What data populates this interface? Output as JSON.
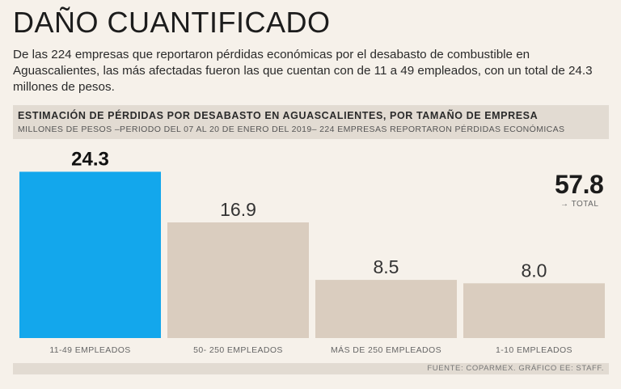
{
  "headline": "DAÑO CUANTIFICADO",
  "lede": "De las 224 empresas que reportaron pérdidas económicas por el desabasto de combustible en Aguascalientes, las más afectadas fueron las que cuentan con de 11 a 49 empleados, con un total de 24.3 millones de pesos.",
  "chart_data": {
    "type": "bar",
    "title": "ESTIMACIÓN DE PÉRDIDAS POR DESABASTO EN AGUASCALIENTES, POR TAMAÑO DE EMPRESA",
    "subtitle": "MILLONES DE PESOS –PERIODO DEL 07 AL 20 DE ENERO DEL 2019– 224 EMPRESAS REPORTARON PÉRDIDAS ECONÓMICAS",
    "categories": [
      "11-49 EMPLEADOS",
      "50- 250 EMPLEADOS",
      "MÁS DE 250 EMPLEADOS",
      "1-10 EMPLEADOS"
    ],
    "values": [
      24.3,
      16.9,
      8.5,
      8.0
    ],
    "value_labels": [
      "24.3",
      "16.9",
      "8.5",
      "8.0"
    ],
    "highlight_index": 0,
    "ylim": [
      0,
      26
    ],
    "xlabel": "",
    "ylabel": "",
    "total": "57.8",
    "total_label": "→ TOTAL"
  },
  "colors": {
    "highlight": "#13a7ec",
    "bar": "#dacdbf",
    "background": "#f6f1ea"
  },
  "source": "FUENTE: COPARMEX. GRÁFICO EE: STAFF."
}
